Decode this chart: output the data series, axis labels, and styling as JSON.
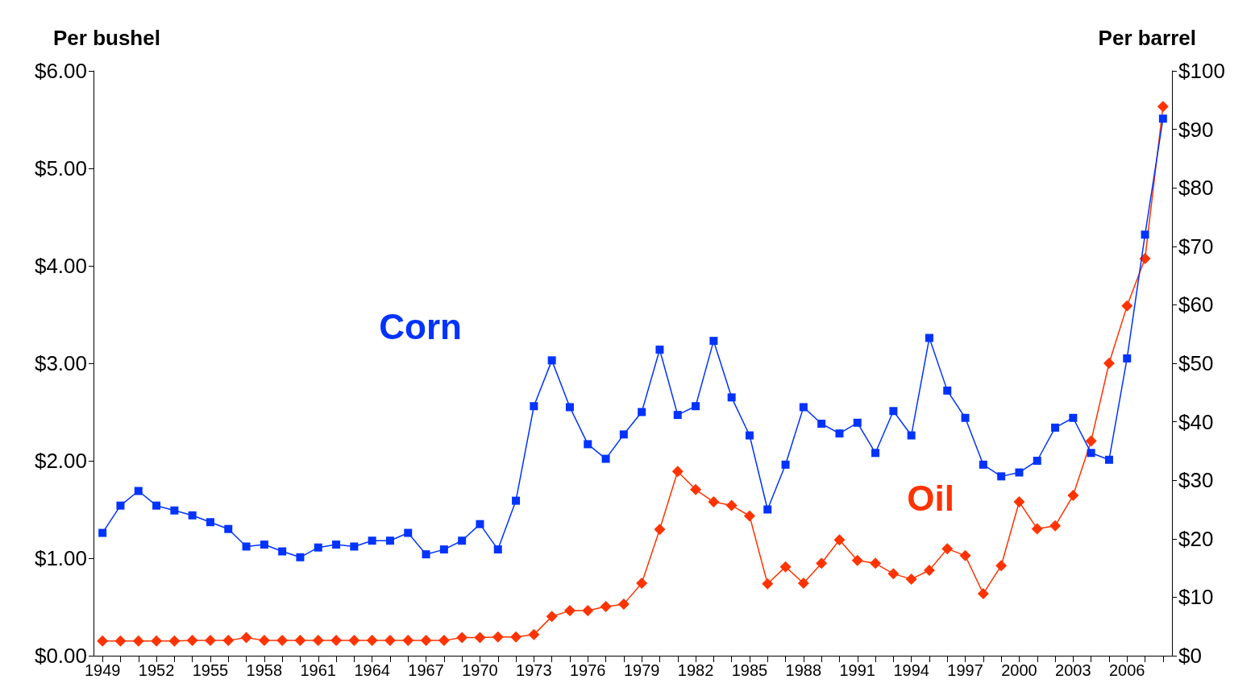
{
  "chart_data": {
    "type": "line",
    "ylabel": "Per bushel",
    "y2label": "Per barrel",
    "x": [
      1949,
      1950,
      1951,
      1952,
      1953,
      1954,
      1955,
      1956,
      1957,
      1958,
      1959,
      1960,
      1961,
      1962,
      1963,
      1964,
      1965,
      1966,
      1967,
      1968,
      1969,
      1970,
      1971,
      1972,
      1973,
      1974,
      1975,
      1976,
      1977,
      1978,
      1979,
      1980,
      1981,
      1982,
      1983,
      1984,
      1985,
      1986,
      1987,
      1988,
      1989,
      1990,
      1991,
      1992,
      1993,
      1994,
      1995,
      1996,
      1997,
      1998,
      1999,
      2000,
      2001,
      2002,
      2003,
      2004,
      2005,
      2006,
      2007,
      2008
    ],
    "series": [
      {
        "name": "Corn",
        "color": "#0033ff",
        "marker": "square",
        "values": [
          1.26,
          1.54,
          1.69,
          1.54,
          1.49,
          1.44,
          1.37,
          1.3,
          1.12,
          1.14,
          1.07,
          1.01,
          1.11,
          1.14,
          1.12,
          1.18,
          1.18,
          1.26,
          1.04,
          1.09,
          1.18,
          1.35,
          1.09,
          1.59,
          2.56,
          3.03,
          2.55,
          2.17,
          2.02,
          2.27,
          2.5,
          3.14,
          2.47,
          2.56,
          3.23,
          2.65,
          2.26,
          1.5,
          1.96,
          2.55,
          2.38,
          2.28,
          2.39,
          2.08,
          2.51,
          2.26,
          3.26,
          2.72,
          2.44,
          1.96,
          1.84,
          1.88,
          2.0,
          2.34,
          2.44,
          2.08,
          2.01,
          3.05,
          4.32,
          5.51
        ]
      },
      {
        "name": "Oil",
        "color": "#ff3300",
        "marker": "diamond",
        "axis": "y2",
        "values": [
          2.5,
          2.5,
          2.5,
          2.5,
          2.5,
          2.6,
          2.6,
          2.6,
          3.1,
          2.6,
          2.6,
          2.6,
          2.6,
          2.6,
          2.6,
          2.6,
          2.6,
          2.6,
          2.6,
          2.6,
          3.1,
          3.1,
          3.2,
          3.2,
          3.6,
          6.7,
          7.7,
          7.7,
          8.4,
          8.8,
          12.4,
          21.6,
          31.5,
          28.4,
          26.3,
          25.7,
          23.9,
          12.3,
          15.2,
          12.4,
          15.8,
          19.8,
          16.3,
          15.8,
          14.0,
          13.1,
          14.6,
          18.3,
          17.1,
          10.6,
          15.4,
          26.3,
          21.7,
          22.2,
          27.4,
          36.7,
          50.0,
          59.8,
          67.9,
          93.9
        ]
      }
    ],
    "xlim": [
      1948.5,
      2008.5
    ],
    "xticks": [
      {
        "value": 1949,
        "label": "1949"
      },
      {
        "value": 1950,
        "label": null
      },
      {
        "value": 1951,
        "label": null
      },
      {
        "value": 1952,
        "label": "1952"
      },
      {
        "value": 1953,
        "label": null
      },
      {
        "value": 1954,
        "label": null
      },
      {
        "value": 1955,
        "label": "1955"
      },
      {
        "value": 1956,
        "label": null
      },
      {
        "value": 1957,
        "label": null
      },
      {
        "value": 1958,
        "label": "1958"
      },
      {
        "value": 1959,
        "label": null
      },
      {
        "value": 1960,
        "label": null
      },
      {
        "value": 1961,
        "label": "1961"
      },
      {
        "value": 1962,
        "label": null
      },
      {
        "value": 1963,
        "label": null
      },
      {
        "value": 1964,
        "label": "1964"
      },
      {
        "value": 1965,
        "label": null
      },
      {
        "value": 1966,
        "label": null
      },
      {
        "value": 1967,
        "label": "1967"
      },
      {
        "value": 1968,
        "label": null
      },
      {
        "value": 1969,
        "label": null
      },
      {
        "value": 1970,
        "label": "1970"
      },
      {
        "value": 1971,
        "label": null
      },
      {
        "value": 1972,
        "label": null
      },
      {
        "value": 1973,
        "label": "1973"
      },
      {
        "value": 1974,
        "label": null
      },
      {
        "value": 1975,
        "label": null
      },
      {
        "value": 1976,
        "label": "1976"
      },
      {
        "value": 1977,
        "label": null
      },
      {
        "value": 1978,
        "label": null
      },
      {
        "value": 1979,
        "label": "1979"
      },
      {
        "value": 1980,
        "label": null
      },
      {
        "value": 1981,
        "label": null
      },
      {
        "value": 1982,
        "label": "1982"
      },
      {
        "value": 1983,
        "label": null
      },
      {
        "value": 1984,
        "label": null
      },
      {
        "value": 1985,
        "label": "1985"
      },
      {
        "value": 1986,
        "label": null
      },
      {
        "value": 1987,
        "label": null
      },
      {
        "value": 1988,
        "label": "1988"
      },
      {
        "value": 1989,
        "label": null
      },
      {
        "value": 1990,
        "label": null
      },
      {
        "value": 1991,
        "label": "1991"
      },
      {
        "value": 1992,
        "label": null
      },
      {
        "value": 1993,
        "label": null
      },
      {
        "value": 1994,
        "label": "1994"
      },
      {
        "value": 1995,
        "label": null
      },
      {
        "value": 1996,
        "label": null
      },
      {
        "value": 1997,
        "label": "1997"
      },
      {
        "value": 1998,
        "label": null
      },
      {
        "value": 1999,
        "label": null
      },
      {
        "value": 2000,
        "label": "2000"
      },
      {
        "value": 2001,
        "label": null
      },
      {
        "value": 2002,
        "label": null
      },
      {
        "value": 2003,
        "label": "2003"
      },
      {
        "value": 2004,
        "label": null
      },
      {
        "value": 2005,
        "label": null
      },
      {
        "value": 2006,
        "label": "2006"
      },
      {
        "value": 2007,
        "label": null
      },
      {
        "value": 2008,
        "label": null
      }
    ],
    "ylim": [
      0,
      6
    ],
    "yticks": [
      {
        "value": 0,
        "label": "$0.00"
      },
      {
        "value": 1,
        "label": "$1.00"
      },
      {
        "value": 2,
        "label": "$2.00"
      },
      {
        "value": 3,
        "label": "$3.00"
      },
      {
        "value": 4,
        "label": "$4.00"
      },
      {
        "value": 5,
        "label": "$5.00"
      },
      {
        "value": 6,
        "label": "$6.00"
      }
    ],
    "y2lim": [
      0,
      100
    ],
    "y2ticks": [
      {
        "value": 0,
        "label": "$0"
      },
      {
        "value": 10,
        "label": "$10"
      },
      {
        "value": 20,
        "label": "$20"
      },
      {
        "value": 30,
        "label": "$30"
      },
      {
        "value": 40,
        "label": "$40"
      },
      {
        "value": 50,
        "label": "$50"
      },
      {
        "value": 60,
        "label": "$60"
      },
      {
        "value": 70,
        "label": "$70"
      },
      {
        "value": 80,
        "label": "$80"
      },
      {
        "value": 90,
        "label": "$90"
      },
      {
        "value": 100,
        "label": "$100"
      }
    ],
    "grid": false,
    "legend": false
  }
}
